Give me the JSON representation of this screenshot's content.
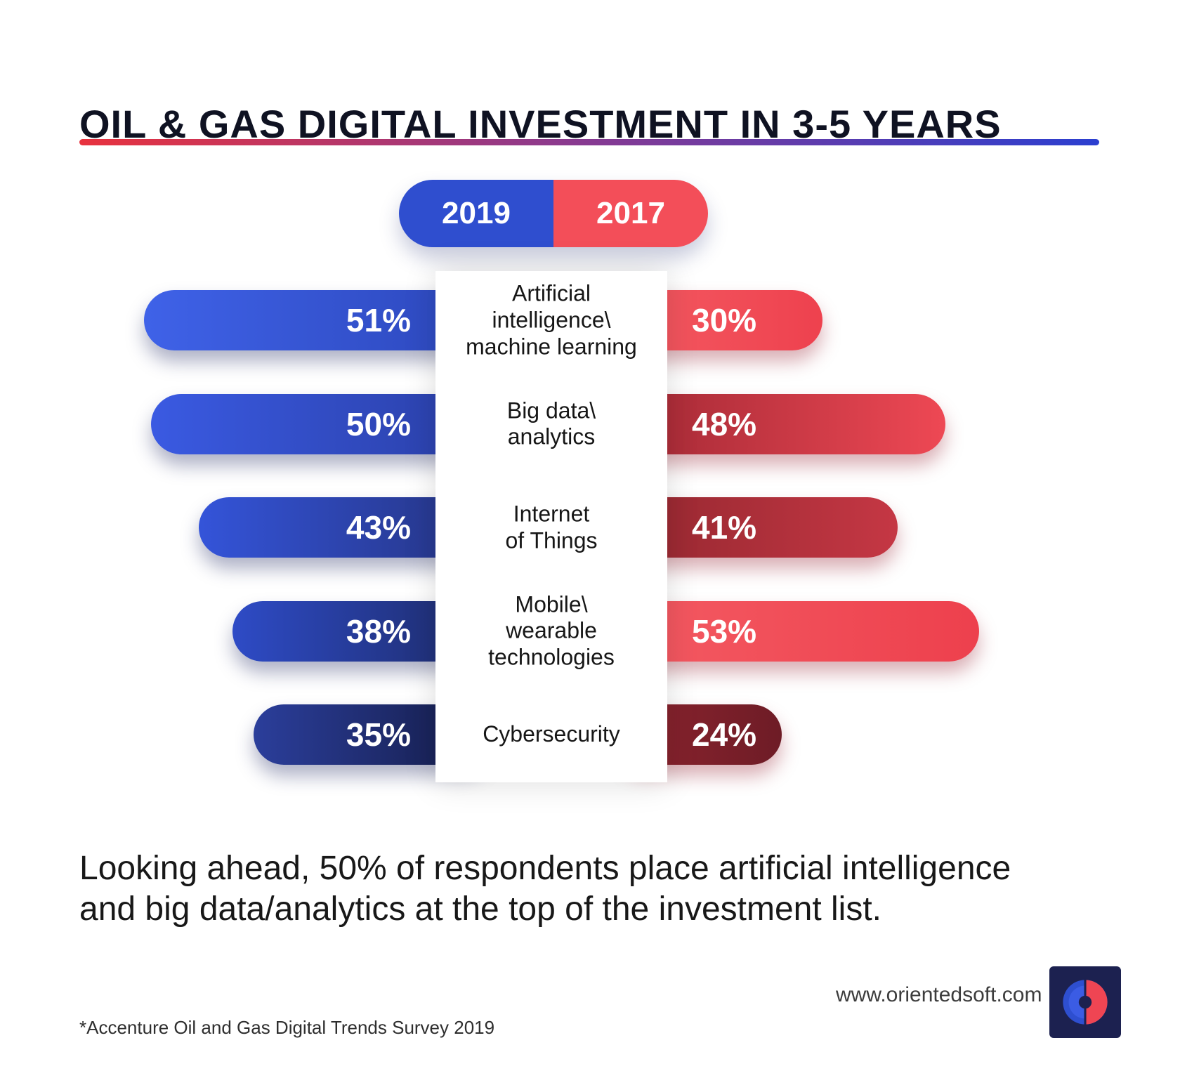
{
  "title": "OIL & GAS DIGITAL INVESTMENT IN 3-5 YEARS",
  "legend": {
    "series": [
      {
        "label": "2019",
        "color": "#2f4ecf"
      },
      {
        "label": "2017",
        "color": "#f34e59"
      }
    ]
  },
  "chart_data": {
    "type": "bar",
    "orientation": "horizontal-mirrored",
    "categories": [
      "Artificial\nintelligence\\\nmachine learning",
      "Big data\\\nanalytics",
      "Internet\nof Things",
      "Mobile\\\nwearable\ntechnologies",
      "Cybersecurity"
    ],
    "series": [
      {
        "name": "2019",
        "values": [
          51,
          50,
          43,
          38,
          35
        ],
        "bar_gradients": [
          [
            "#3f62e8",
            "#2c47bb"
          ],
          [
            "#3a5ae2",
            "#2a3fa6"
          ],
          [
            "#3454d9",
            "#253380"
          ],
          [
            "#2e4bc6",
            "#1d2a66"
          ],
          [
            "#2b3e9b",
            "#141b45"
          ]
        ]
      },
      {
        "name": "2017",
        "values": [
          30,
          48,
          41,
          53,
          24
        ],
        "bar_gradients": [
          [
            "#f45b63",
            "#ee414e"
          ],
          [
            "#a12834",
            "#ee4854"
          ],
          [
            "#93272f",
            "#c53744"
          ],
          [
            "#f45b63",
            "#ed404d"
          ],
          [
            "#8e242f",
            "#6e1c26"
          ]
        ]
      }
    ],
    "value_suffix": "%",
    "xlim": [
      0,
      60
    ],
    "grid": false,
    "legend_position": "top-center"
  },
  "summary": "Looking ahead, 50% of respondents place artificial intelligence and big data/analytics at the top of the investment list.",
  "footnote": "*Accenture Oil and Gas Digital Trends Survey 2019",
  "website": "www.orientedsoft.com",
  "colors": {
    "title": "#0f1222",
    "divider": [
      "#e8323e",
      "#8a3a8f",
      "#2b3fd0"
    ],
    "blue": "#2f4ecf",
    "red": "#f34e59",
    "logo_navy": "#1c2150"
  }
}
